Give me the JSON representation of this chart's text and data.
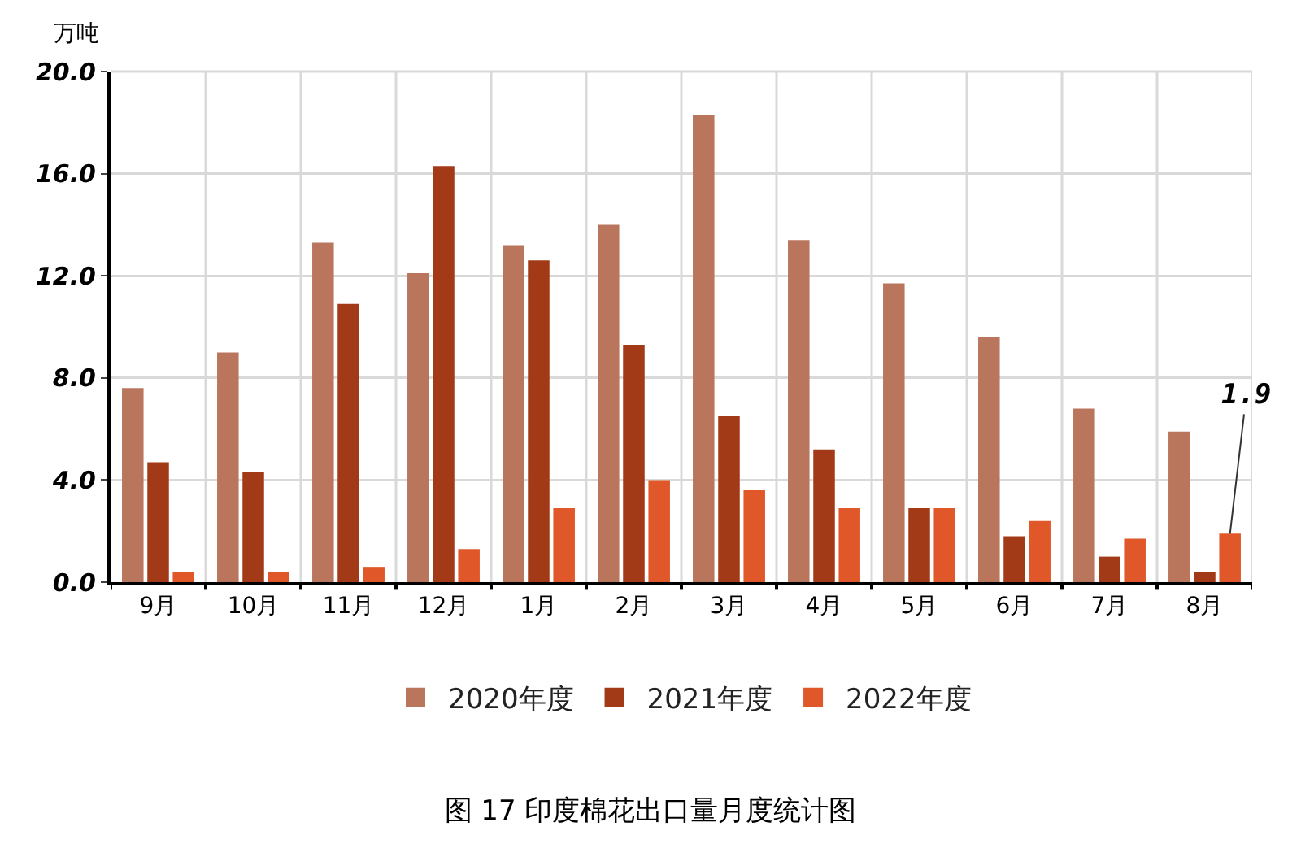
{
  "chart_data": {
    "type": "bar",
    "title": "图 17 印度棉花出口量月度统计图",
    "ylabel": "万吨",
    "categories": [
      "9月",
      "10月",
      "11月",
      "12月",
      "1月",
      "2月",
      "3月",
      "4月",
      "5月",
      "6月",
      "7月",
      "8月"
    ],
    "series": [
      {
        "name": "2020年度",
        "color": "#b9765c",
        "values": [
          7.6,
          9.0,
          13.3,
          12.1,
          13.2,
          14.0,
          18.3,
          13.4,
          11.7,
          9.6,
          6.8,
          5.9
        ]
      },
      {
        "name": "2021年度",
        "color": "#a33a17",
        "values": [
          4.7,
          4.3,
          10.9,
          16.3,
          12.6,
          9.3,
          6.5,
          5.2,
          2.9,
          1.8,
          1.0,
          0.4
        ]
      },
      {
        "name": "2022年度",
        "color": "#e0582a",
        "values": [
          0.4,
          0.4,
          0.6,
          1.3,
          2.9,
          4.0,
          3.6,
          2.9,
          2.9,
          2.4,
          1.7,
          1.9
        ],
        "value_labels": [
          null,
          null,
          null,
          null,
          null,
          null,
          null,
          null,
          null,
          null,
          null,
          "1.9"
        ]
      }
    ],
    "ylim": [
      0,
      20
    ],
    "yticks": [
      {
        "value": 0,
        "label": "0.0"
      },
      {
        "value": 4,
        "label": "4.0"
      },
      {
        "value": 8,
        "label": "8.0"
      },
      {
        "value": 12,
        "label": "12.0"
      },
      {
        "value": 16,
        "label": "16.0"
      },
      {
        "value": 20,
        "label": "20.0"
      }
    ],
    "grid": true,
    "legend": "bottom"
  }
}
